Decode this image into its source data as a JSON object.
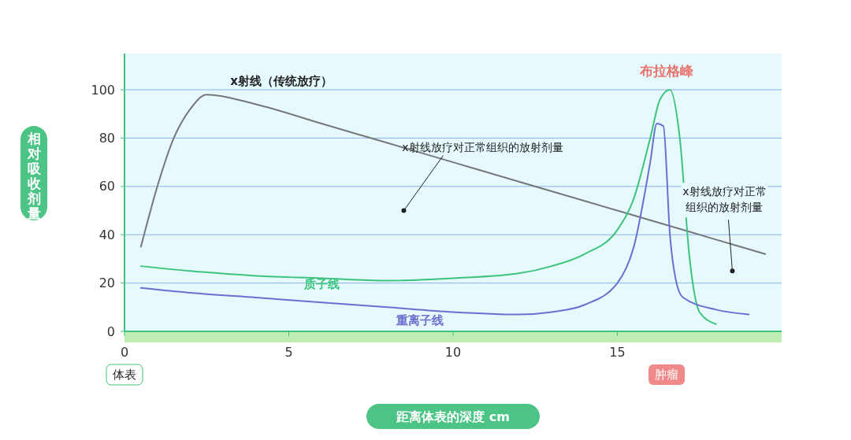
{
  "chart_data": {
    "type": "line",
    "xlabel": "距离体表的深度 cm",
    "ylabel": "相对吸收剂量",
    "xlim": [
      0,
      20
    ],
    "xticks": [
      0,
      5,
      10,
      15
    ],
    "ylim": [
      0,
      115
    ],
    "yticks": [
      0,
      20,
      40,
      60,
      80,
      100
    ],
    "grid": "y",
    "series": [
      {
        "name": "x射线（传统放疗）",
        "color": "#777777",
        "x": [
          0.5,
          1,
          1.5,
          2,
          2.5,
          4,
          6,
          8,
          10,
          12,
          14,
          16,
          18,
          19.5
        ],
        "values": [
          35,
          60,
          80,
          92,
          98,
          94,
          86,
          78,
          70,
          62,
          54,
          46,
          38,
          32
        ]
      },
      {
        "name": "质子线",
        "color": "#3cc47c",
        "x": [
          0.5,
          2,
          4,
          6,
          8,
          10,
          12,
          13,
          14,
          15,
          15.5,
          16,
          16.3,
          16.6,
          16.9,
          17.2,
          17.5,
          18
        ],
        "values": [
          27,
          25,
          23,
          22,
          21,
          22,
          24,
          27,
          32,
          42,
          55,
          80,
          96,
          100,
          80,
          30,
          8,
          3
        ]
      },
      {
        "name": "重离子线",
        "color": "#6a6fd0",
        "x": [
          0.5,
          2,
          4,
          6,
          8,
          10,
          12,
          13,
          14,
          15,
          15.5,
          16,
          16.2,
          16.4,
          16.6,
          16.8,
          17,
          18,
          19
        ],
        "values": [
          18,
          16,
          14,
          12,
          10,
          8,
          7,
          8,
          11,
          20,
          35,
          70,
          86,
          85,
          40,
          20,
          14,
          9,
          7
        ]
      }
    ],
    "annotations": [
      {
        "text": "布拉格峰",
        "x": 16.5,
        "y": 100
      },
      {
        "text": "x射线放疗对正常组织的放射剂量",
        "x": 8.5,
        "y": 50
      },
      {
        "text": "x射线放疗对正常组织的放射剂量",
        "x": 18.5,
        "y": 25
      },
      "体表",
      "肿瘤"
    ]
  }
}
